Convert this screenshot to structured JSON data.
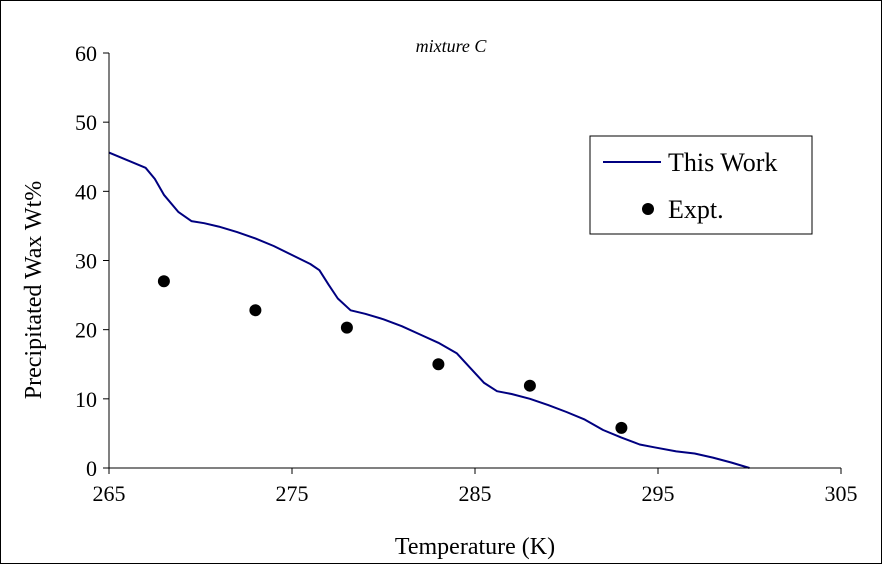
{
  "chart_data": {
    "type": "line",
    "title": "mixture C",
    "xlabel": "Temperature (K)",
    "ylabel": "Precipitated Wax Wt%",
    "xlim": [
      265,
      305
    ],
    "ylim": [
      0,
      60
    ],
    "x_ticks": [
      265,
      275,
      285,
      295,
      305
    ],
    "y_ticks": [
      0,
      10,
      20,
      30,
      40,
      50,
      60
    ],
    "grid": false,
    "legend_position": "right",
    "series": [
      {
        "name": "This Work",
        "style": "line",
        "color": "#000080",
        "points": [
          [
            265.0,
            45.6
          ],
          [
            266.0,
            44.5
          ],
          [
            267.0,
            43.4
          ],
          [
            267.5,
            41.8
          ],
          [
            268.0,
            39.5
          ],
          [
            268.8,
            37.0
          ],
          [
            269.5,
            35.7
          ],
          [
            270.2,
            35.4
          ],
          [
            271.0,
            34.9
          ],
          [
            272.0,
            34.1
          ],
          [
            273.0,
            33.2
          ],
          [
            274.0,
            32.1
          ],
          [
            275.0,
            30.8
          ],
          [
            276.0,
            29.5
          ],
          [
            276.5,
            28.6
          ],
          [
            277.0,
            26.5
          ],
          [
            277.5,
            24.5
          ],
          [
            278.2,
            22.8
          ],
          [
            279.0,
            22.3
          ],
          [
            280.0,
            21.5
          ],
          [
            281.0,
            20.5
          ],
          [
            282.0,
            19.3
          ],
          [
            283.0,
            18.1
          ],
          [
            284.0,
            16.6
          ],
          [
            284.8,
            14.3
          ],
          [
            285.5,
            12.3
          ],
          [
            286.2,
            11.1
          ],
          [
            287.0,
            10.7
          ],
          [
            288.0,
            10.0
          ],
          [
            289.0,
            9.1
          ],
          [
            290.0,
            8.1
          ],
          [
            291.0,
            7.0
          ],
          [
            292.0,
            5.5
          ],
          [
            293.0,
            4.4
          ],
          [
            294.0,
            3.4
          ],
          [
            294.8,
            3.0
          ],
          [
            296.0,
            2.4
          ],
          [
            297.0,
            2.1
          ],
          [
            298.0,
            1.5
          ],
          [
            299.0,
            0.8
          ],
          [
            300.0,
            0.0
          ]
        ]
      },
      {
        "name": "Expt.",
        "style": "marker",
        "color": "#000000",
        "points": [
          [
            268.0,
            27.0
          ],
          [
            273.0,
            22.8
          ],
          [
            278.0,
            20.3
          ],
          [
            283.0,
            15.0
          ],
          [
            288.0,
            11.9
          ],
          [
            293.0,
            5.8
          ]
        ]
      }
    ]
  }
}
